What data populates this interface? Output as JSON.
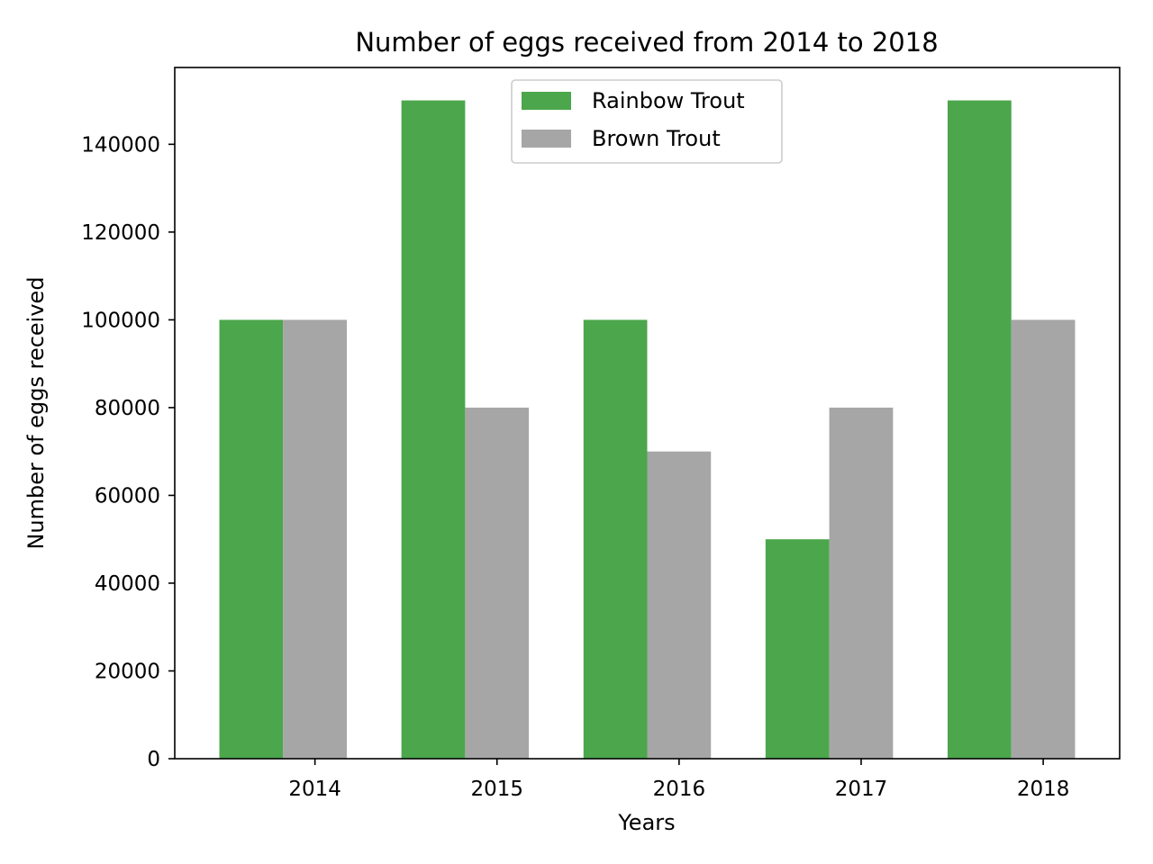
{
  "chart_data": {
    "type": "bar",
    "title": "Number of eggs received from 2014 to 2018",
    "xlabel": "Years",
    "ylabel": "Number of eggs received",
    "categories": [
      "2014",
      "2015",
      "2016",
      "2017",
      "2018"
    ],
    "series": [
      {
        "name": "Rainbow Trout",
        "color": "#4ca64c",
        "values": [
          100000,
          150000,
          100000,
          50000,
          150000
        ]
      },
      {
        "name": "Brown Trout",
        "color": "#a6a6a6",
        "values": [
          100000,
          80000,
          70000,
          80000,
          100000
        ]
      }
    ],
    "ylim": [
      0,
      157500
    ],
    "yticks": [
      0,
      20000,
      40000,
      60000,
      80000,
      100000,
      120000,
      140000
    ],
    "legend_position": "top-center",
    "grid": false
  }
}
